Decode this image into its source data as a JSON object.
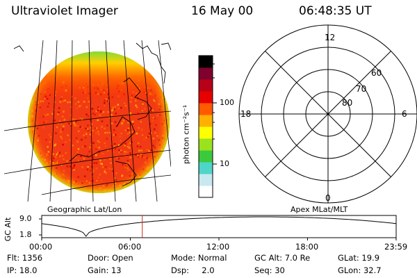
{
  "header": {
    "instrument": "Ultraviolet Imager",
    "date": "16 May 00",
    "time": "06:48:35 UT"
  },
  "colorbar": {
    "unit_label": "photon cm⁻²s⁻¹",
    "ticks": [
      {
        "label": "100",
        "value": 100
      },
      {
        "label": "10",
        "value": 10
      }
    ],
    "colors": [
      "#ffffff",
      "#c8e8f0",
      "#4fd6c8",
      "#3cc93c",
      "#9be21e",
      "#ffff00",
      "#ffb000",
      "#ff5a00",
      "#e60000",
      "#b80018",
      "#80002e",
      "#000000"
    ]
  },
  "polar_plot": {
    "lat_labels": [
      "80",
      "70",
      "60"
    ],
    "mlt_labels": {
      "top": "12",
      "left": "18",
      "right": "6",
      "bottom": "0"
    }
  },
  "timeline": {
    "axis_label": "GC Alt",
    "y_ticks": [
      "9.0",
      "1.8"
    ],
    "left_title": "Geographic Lat/Lon",
    "right_title": "Apex MLat/MLT",
    "x_ticks": [
      "00:00",
      "06:00",
      "12:00",
      "18:00",
      "23:59"
    ],
    "current_time_hours": 6.81,
    "marker_color": "#cc2a1a"
  },
  "info": {
    "flt": "Flt: 1356",
    "door": "Door: Open",
    "mode": "Mode: Normal",
    "gc_alt": "GC Alt: 7.0 Re",
    "glat": "GLat: 19.9",
    "ip": "IP: 18.0",
    "gain": "Gain: 13",
    "dsp": "Dsp:     2.0",
    "seq": "Seq: 30",
    "glon": "GLon: 32.7"
  }
}
